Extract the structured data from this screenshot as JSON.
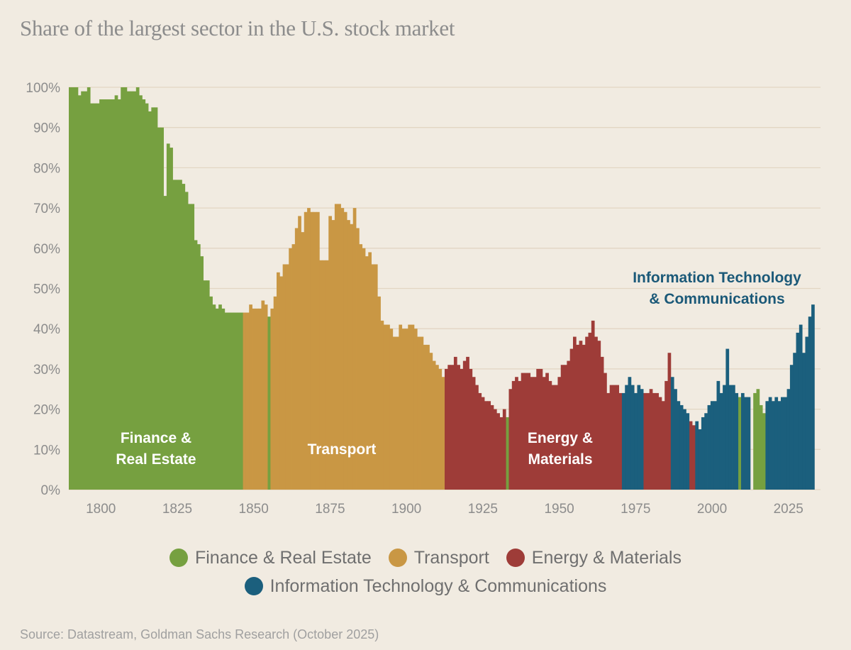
{
  "title": "Share of the largest sector in the U.S. stock market",
  "source": "Source: Datastream, Goldman Sachs Research (October 2025)",
  "colors": {
    "finance": "#76a040",
    "transport": "#c99744",
    "energy": "#9e3c38",
    "it": "#1b5f7d",
    "grid": "#e2d6c3",
    "background": "#f1ebe1"
  },
  "legend": [
    {
      "key": "finance",
      "label": "Finance & Real Estate"
    },
    {
      "key": "transport",
      "label": "Transport"
    },
    {
      "key": "energy",
      "label": "Energy & Materials"
    },
    {
      "key": "it",
      "label": "Information Technology & Communications"
    }
  ],
  "annotations": {
    "finance": [
      "Finance &",
      "Real Estate"
    ],
    "transport": [
      "Transport"
    ],
    "energy": [
      "Energy &",
      "Materials"
    ],
    "it": [
      "Information Technology",
      "& Communications"
    ]
  },
  "chart_data": {
    "type": "bar",
    "title": "Share of the largest sector in the U.S. stock market",
    "xlabel": "",
    "ylabel": "",
    "xlim": [
      1790,
      2035
    ],
    "ylim": [
      0,
      100
    ],
    "x_ticks": [
      1800,
      1825,
      1850,
      1875,
      1900,
      1925,
      1950,
      1975,
      2000,
      2025
    ],
    "y_ticks": [
      "0%",
      "10%",
      "20%",
      "30%",
      "40%",
      "50%",
      "60%",
      "70%",
      "80%",
      "90%",
      "100%"
    ],
    "grid": true,
    "legend_position": "bottom",
    "series": [
      {
        "name": "Finance & Real Estate",
        "key": "finance",
        "points": [
          [
            1790,
            100
          ],
          [
            1791,
            100
          ],
          [
            1792,
            100
          ],
          [
            1793,
            98
          ],
          [
            1794,
            99
          ],
          [
            1795,
            99
          ],
          [
            1796,
            100
          ],
          [
            1797,
            96
          ],
          [
            1798,
            96
          ],
          [
            1799,
            96
          ],
          [
            1800,
            97
          ],
          [
            1801,
            97
          ],
          [
            1802,
            97
          ],
          [
            1803,
            97
          ],
          [
            1804,
            97
          ],
          [
            1805,
            98
          ],
          [
            1806,
            97
          ],
          [
            1807,
            100
          ],
          [
            1808,
            100
          ],
          [
            1809,
            99
          ],
          [
            1810,
            99
          ],
          [
            1811,
            99
          ],
          [
            1812,
            100
          ],
          [
            1813,
            98
          ],
          [
            1814,
            97
          ],
          [
            1815,
            96
          ],
          [
            1816,
            94
          ],
          [
            1817,
            95
          ],
          [
            1818,
            95
          ],
          [
            1819,
            90
          ],
          [
            1820,
            90
          ],
          [
            1821,
            73
          ],
          [
            1822,
            86
          ],
          [
            1823,
            85
          ],
          [
            1824,
            77
          ],
          [
            1825,
            77
          ],
          [
            1826,
            77
          ],
          [
            1827,
            76
          ],
          [
            1828,
            74
          ],
          [
            1829,
            71
          ],
          [
            1830,
            71
          ],
          [
            1831,
            62
          ],
          [
            1832,
            61
          ],
          [
            1833,
            58
          ],
          [
            1834,
            52
          ],
          [
            1835,
            52
          ],
          [
            1836,
            48
          ],
          [
            1837,
            46
          ],
          [
            1838,
            45
          ],
          [
            1839,
            46
          ],
          [
            1840,
            45
          ],
          [
            1841,
            44
          ],
          [
            1842,
            44
          ],
          [
            1843,
            44
          ],
          [
            1844,
            44
          ],
          [
            1845,
            44
          ],
          [
            1846,
            44
          ],
          [
            1855,
            43
          ],
          [
            1933,
            18
          ],
          [
            2009,
            23
          ],
          [
            2014,
            24
          ],
          [
            2015,
            25
          ],
          [
            2016,
            21
          ],
          [
            2017,
            19
          ]
        ]
      },
      {
        "name": "Transport",
        "key": "transport",
        "points": [
          [
            1847,
            44
          ],
          [
            1848,
            44
          ],
          [
            1849,
            46
          ],
          [
            1850,
            45
          ],
          [
            1851,
            45
          ],
          [
            1852,
            45
          ],
          [
            1853,
            47
          ],
          [
            1854,
            46
          ],
          [
            1856,
            45
          ],
          [
            1857,
            48
          ],
          [
            1858,
            54
          ],
          [
            1859,
            53
          ],
          [
            1860,
            56
          ],
          [
            1861,
            56
          ],
          [
            1862,
            60
          ],
          [
            1863,
            61
          ],
          [
            1864,
            65
          ],
          [
            1865,
            68
          ],
          [
            1866,
            64
          ],
          [
            1867,
            69
          ],
          [
            1868,
            70
          ],
          [
            1869,
            69
          ],
          [
            1870,
            69
          ],
          [
            1871,
            69
          ],
          [
            1872,
            57
          ],
          [
            1873,
            57
          ],
          [
            1874,
            57
          ],
          [
            1875,
            68
          ],
          [
            1876,
            67
          ],
          [
            1877,
            71
          ],
          [
            1878,
            71
          ],
          [
            1879,
            70
          ],
          [
            1880,
            69
          ],
          [
            1881,
            67
          ],
          [
            1882,
            66
          ],
          [
            1883,
            70
          ],
          [
            1884,
            65
          ],
          [
            1885,
            61
          ],
          [
            1886,
            60
          ],
          [
            1887,
            58
          ],
          [
            1888,
            59
          ],
          [
            1889,
            56
          ],
          [
            1890,
            56
          ],
          [
            1891,
            48
          ],
          [
            1892,
            42
          ],
          [
            1893,
            41
          ],
          [
            1894,
            41
          ],
          [
            1895,
            40
          ],
          [
            1896,
            38
          ],
          [
            1897,
            38
          ],
          [
            1898,
            41
          ],
          [
            1899,
            40
          ],
          [
            1900,
            40
          ],
          [
            1901,
            41
          ],
          [
            1902,
            41
          ],
          [
            1903,
            40
          ],
          [
            1904,
            38
          ],
          [
            1905,
            38
          ],
          [
            1906,
            36
          ],
          [
            1907,
            36
          ],
          [
            1908,
            34
          ],
          [
            1909,
            32
          ],
          [
            1910,
            31
          ],
          [
            1911,
            30
          ],
          [
            1912,
            28
          ]
        ]
      },
      {
        "name": "Energy & Materials",
        "key": "energy",
        "points": [
          [
            1913,
            30
          ],
          [
            1914,
            31
          ],
          [
            1915,
            31
          ],
          [
            1916,
            33
          ],
          [
            1917,
            31
          ],
          [
            1918,
            30
          ],
          [
            1919,
            32
          ],
          [
            1920,
            33
          ],
          [
            1921,
            30
          ],
          [
            1922,
            28
          ],
          [
            1923,
            26
          ],
          [
            1924,
            24
          ],
          [
            1925,
            23
          ],
          [
            1926,
            22
          ],
          [
            1927,
            22
          ],
          [
            1928,
            21
          ],
          [
            1929,
            20
          ],
          [
            1930,
            19
          ],
          [
            1931,
            18
          ],
          [
            1932,
            20
          ],
          [
            1934,
            25
          ],
          [
            1935,
            27
          ],
          [
            1936,
            28
          ],
          [
            1937,
            27
          ],
          [
            1938,
            29
          ],
          [
            1939,
            29
          ],
          [
            1940,
            29
          ],
          [
            1941,
            28
          ],
          [
            1942,
            28
          ],
          [
            1943,
            30
          ],
          [
            1944,
            30
          ],
          [
            1945,
            28
          ],
          [
            1946,
            29
          ],
          [
            1947,
            27
          ],
          [
            1948,
            26
          ],
          [
            1949,
            26
          ],
          [
            1950,
            28
          ],
          [
            1951,
            31
          ],
          [
            1952,
            31
          ],
          [
            1953,
            32
          ],
          [
            1954,
            35
          ],
          [
            1955,
            38
          ],
          [
            1956,
            36
          ],
          [
            1957,
            37
          ],
          [
            1958,
            36
          ],
          [
            1959,
            38
          ],
          [
            1960,
            39
          ],
          [
            1961,
            42
          ],
          [
            1962,
            38
          ],
          [
            1963,
            37
          ],
          [
            1964,
            33
          ],
          [
            1965,
            29
          ],
          [
            1966,
            24
          ],
          [
            1967,
            26
          ],
          [
            1968,
            26
          ],
          [
            1969,
            26
          ],
          [
            1970,
            24
          ],
          [
            1978,
            24
          ],
          [
            1979,
            24
          ],
          [
            1980,
            25
          ],
          [
            1981,
            24
          ],
          [
            1982,
            24
          ],
          [
            1983,
            23
          ],
          [
            1984,
            22
          ],
          [
            1985,
            27
          ],
          [
            1986,
            34
          ],
          [
            1993,
            17
          ],
          [
            1994,
            16
          ]
        ]
      },
      {
        "name": "Information Technology & Communications",
        "key": "it",
        "points": [
          [
            1971,
            24
          ],
          [
            1972,
            26
          ],
          [
            1973,
            28
          ],
          [
            1974,
            26
          ],
          [
            1975,
            24
          ],
          [
            1976,
            26
          ],
          [
            1977,
            25
          ],
          [
            1987,
            28
          ],
          [
            1988,
            25
          ],
          [
            1989,
            22
          ],
          [
            1990,
            21
          ],
          [
            1991,
            20
          ],
          [
            1992,
            19
          ],
          [
            1995,
            17
          ],
          [
            1996,
            15
          ],
          [
            1997,
            18
          ],
          [
            1998,
            19
          ],
          [
            1999,
            21
          ],
          [
            2000,
            22
          ],
          [
            2001,
            22
          ],
          [
            2002,
            27
          ],
          [
            2003,
            24
          ],
          [
            2004,
            26
          ],
          [
            2005,
            35
          ],
          [
            2006,
            26
          ],
          [
            2007,
            26
          ],
          [
            2008,
            24
          ],
          [
            2010,
            24
          ],
          [
            2011,
            23
          ],
          [
            2012,
            23
          ],
          [
            2018,
            22
          ],
          [
            2019,
            23
          ],
          [
            2020,
            22
          ],
          [
            2021,
            23
          ],
          [
            2022,
            22
          ],
          [
            2023,
            23
          ],
          [
            2024,
            23
          ],
          [
            2025,
            25
          ],
          [
            2026,
            31
          ],
          [
            2027,
            34
          ],
          [
            2028,
            39
          ],
          [
            2029,
            41
          ],
          [
            2030,
            34
          ],
          [
            2031,
            38
          ],
          [
            2032,
            43
          ],
          [
            2033,
            46
          ]
        ]
      }
    ]
  }
}
